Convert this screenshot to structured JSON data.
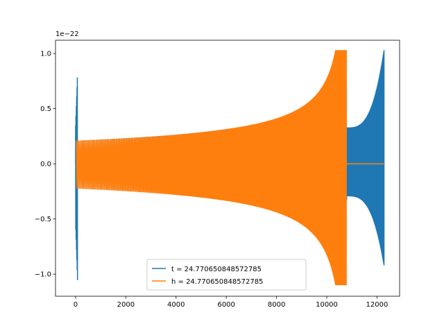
{
  "chart_data": {
    "type": "line",
    "title": "",
    "xlabel": "",
    "ylabel": "",
    "offset_text": "1e−22",
    "xlim": [
      -800,
      12900
    ],
    "ylim": [
      -1.2,
      1.12
    ],
    "grid": false,
    "legend_position": "lower-center",
    "x_ticks": [
      0,
      2000,
      4000,
      6000,
      8000,
      10000,
      12000
    ],
    "x_tick_labels": [
      "0",
      "2000",
      "4000",
      "6000",
      "8000",
      "10000",
      "12000"
    ],
    "y_ticks": [
      -1.0,
      -0.5,
      0.0,
      0.5,
      1.0
    ],
    "y_tick_labels": [
      "−1.0",
      "−0.5",
      "0.0",
      "0.5",
      "1.0"
    ],
    "series": [
      {
        "name": "t = 24.770650848572785",
        "color": "#1f77b4",
        "shape": "chirp",
        "start_x": 0,
        "start_spike_high": 0.87,
        "start_spike_low": -1.1,
        "chirp_start_x": 30,
        "chirp_end_x": 12280,
        "start_amplitude": 0.21,
        "end_amplitude_high": 1.03,
        "end_amplitude_low": -0.92,
        "end_step_x": 10800,
        "end_step_amplitude": 0.33
      },
      {
        "name": "h = 24.770650848572785",
        "color": "#ff7f0e",
        "shape": "chirp",
        "start_x": 30,
        "chirp_start_x": 30,
        "chirp_end_x": 10780,
        "start_amplitude": 0.21,
        "end_amplitude_high": 1.03,
        "end_amplitude_low": -1.1,
        "flat_after_x": 10780,
        "flat_until_x": 12280,
        "flat_value": 0.0
      }
    ]
  }
}
